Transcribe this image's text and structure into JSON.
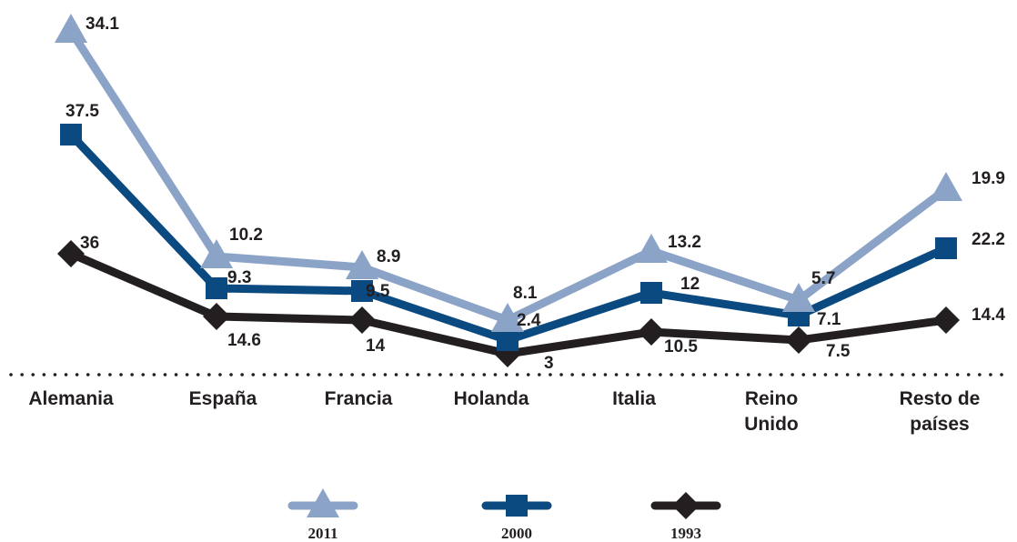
{
  "chart_data": {
    "type": "line",
    "categories": [
      "Alemania",
      "España",
      "Francia",
      "Holanda",
      "Italia",
      "Reino Unido",
      "Resto de países"
    ],
    "series": [
      {
        "name": "2011",
        "color": "#8ca3c8",
        "marker": "triangle",
        "values": [
          34.1,
          10.2,
          8.9,
          8.1,
          13.2,
          5.7,
          19.9
        ]
      },
      {
        "name": "2000",
        "color": "#0b4a80",
        "marker": "square",
        "values": [
          37.5,
          9.3,
          9.5,
          2.4,
          12,
          7.1,
          22.2
        ]
      },
      {
        "name": "1993",
        "color": "#231f20",
        "marker": "diamond",
        "values": [
          36,
          14.6,
          14,
          3,
          10.5,
          7.5,
          14.4
        ]
      }
    ],
    "grid": false,
    "legend_position": "bottom"
  }
}
